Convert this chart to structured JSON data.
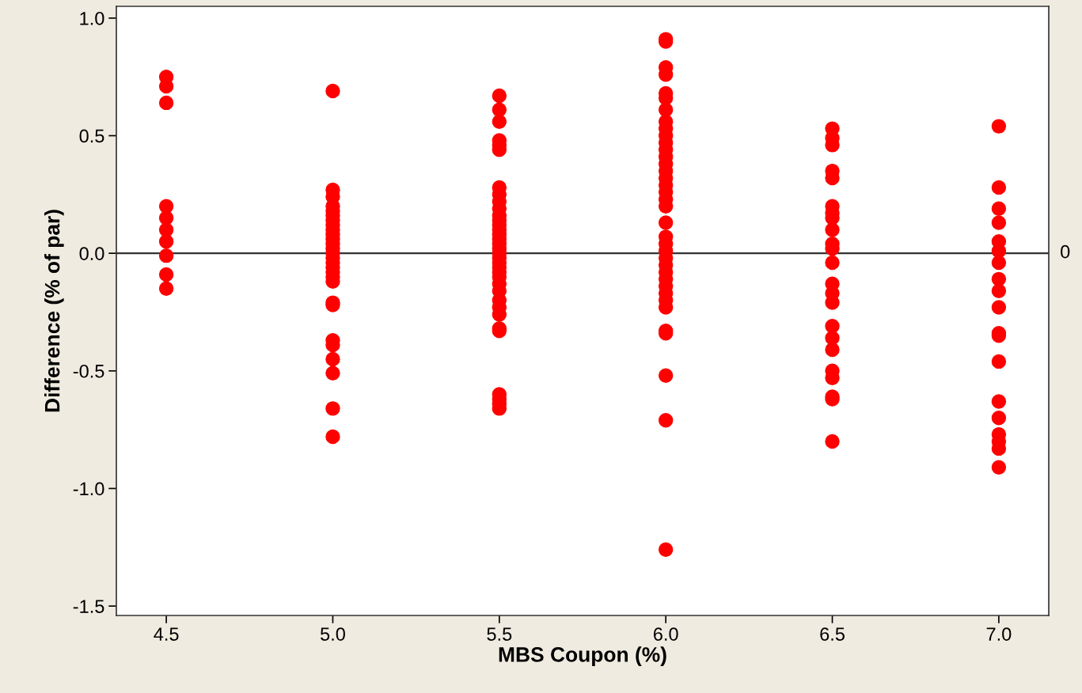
{
  "chart_data": {
    "type": "scatter",
    "xlabel": "MBS Coupon (%)",
    "ylabel": "Difference (% of par)",
    "xlim": [
      4.35,
      7.15
    ],
    "ylim": [
      -1.54,
      1.05
    ],
    "xticks": [
      {
        "value": 4.5,
        "label": "4.5"
      },
      {
        "value": 5.0,
        "label": "5.0"
      },
      {
        "value": 5.5,
        "label": "5.5"
      },
      {
        "value": 6.0,
        "label": "6.0"
      },
      {
        "value": 6.5,
        "label": "6.5"
      },
      {
        "value": 7.0,
        "label": "7.0"
      }
    ],
    "yticks": [
      {
        "value": -1.5,
        "label": "-1.5"
      },
      {
        "value": -1.0,
        "label": "-1.0"
      },
      {
        "value": -0.5,
        "label": "-0.5"
      },
      {
        "value": 0.0,
        "label": "0.0"
      },
      {
        "value": 0.5,
        "label": "0.5"
      },
      {
        "value": 1.0,
        "label": "1.0"
      }
    ],
    "grid": false,
    "marker": "circle",
    "ref_lines": [
      {
        "axis": "y",
        "value": 0,
        "label": "0",
        "color": "#333333"
      }
    ],
    "series": [
      {
        "color": "#ff0000",
        "x": [
          4.5,
          4.5,
          4.5,
          4.5,
          4.5,
          4.5,
          4.5,
          4.5,
          4.5,
          4.5,
          5.0,
          5.0,
          5.0,
          5.0,
          5.0,
          5.0,
          5.0,
          5.0,
          5.0,
          5.0,
          5.0,
          5.0,
          5.0,
          5.0,
          5.0,
          5.0,
          5.0,
          5.0,
          5.0,
          5.0,
          5.0,
          5.0,
          5.0,
          5.0,
          5.0,
          5.0,
          5.0,
          5.0,
          5.5,
          5.5,
          5.5,
          5.5,
          5.5,
          5.5,
          5.5,
          5.5,
          5.5,
          5.5,
          5.5,
          5.5,
          5.5,
          5.5,
          5.5,
          5.5,
          5.5,
          5.5,
          5.5,
          5.5,
          5.5,
          5.5,
          5.5,
          5.5,
          5.5,
          5.5,
          5.5,
          5.5,
          5.5,
          5.5,
          5.5,
          5.5,
          5.5,
          5.5,
          5.5,
          6.0,
          6.0,
          6.0,
          6.0,
          6.0,
          6.0,
          6.0,
          6.0,
          6.0,
          6.0,
          6.0,
          6.0,
          6.0,
          6.0,
          6.0,
          6.0,
          6.0,
          6.0,
          6.0,
          6.0,
          6.0,
          6.0,
          6.0,
          6.0,
          6.0,
          6.0,
          6.0,
          6.0,
          6.0,
          6.0,
          6.0,
          6.0,
          6.0,
          6.0,
          6.0,
          6.0,
          6.0,
          6.5,
          6.5,
          6.5,
          6.5,
          6.5,
          6.5,
          6.5,
          6.5,
          6.5,
          6.5,
          6.5,
          6.5,
          6.5,
          6.5,
          6.5,
          6.5,
          6.5,
          6.5,
          6.5,
          6.5,
          6.5,
          6.5,
          6.5,
          7.0,
          7.0,
          7.0,
          7.0,
          7.0,
          7.0,
          7.0,
          7.0,
          7.0,
          7.0,
          7.0,
          7.0,
          7.0,
          7.0,
          7.0,
          7.0,
          7.0,
          7.0,
          7.0
        ],
        "values": [
          0.75,
          0.71,
          0.64,
          0.2,
          0.15,
          0.1,
          0.05,
          -0.01,
          -0.09,
          -0.15,
          0.69,
          0.27,
          0.24,
          0.2,
          0.18,
          0.16,
          0.14,
          0.12,
          0.1,
          0.08,
          0.06,
          0.04,
          0.02,
          0.0,
          -0.02,
          -0.04,
          -0.06,
          -0.08,
          -0.1,
          -0.12,
          -0.21,
          -0.22,
          -0.37,
          -0.39,
          -0.45,
          -0.51,
          -0.66,
          -0.78,
          0.67,
          0.61,
          0.56,
          0.48,
          0.46,
          0.44,
          0.28,
          0.25,
          0.22,
          0.19,
          0.16,
          0.14,
          0.12,
          0.1,
          0.08,
          0.06,
          0.04,
          0.02,
          0.0,
          -0.02,
          -0.04,
          -0.06,
          -0.08,
          -0.1,
          -0.13,
          -0.16,
          -0.2,
          -0.23,
          -0.26,
          -0.32,
          -0.33,
          -0.6,
          -0.62,
          -0.64,
          -0.66,
          0.91,
          0.9,
          0.79,
          0.76,
          0.68,
          0.66,
          0.61,
          0.56,
          0.53,
          0.5,
          0.47,
          0.44,
          0.41,
          0.38,
          0.35,
          0.32,
          0.29,
          0.26,
          0.23,
          0.2,
          0.13,
          0.07,
          0.04,
          0.01,
          -0.02,
          -0.05,
          -0.08,
          -0.11,
          -0.14,
          -0.17,
          -0.2,
          -0.23,
          -0.33,
          -0.34,
          -0.52,
          -0.71,
          -1.26,
          0.53,
          0.49,
          0.46,
          0.35,
          0.32,
          0.2,
          0.17,
          0.15,
          0.1,
          0.04,
          0.02,
          -0.04,
          -0.13,
          -0.17,
          -0.21,
          -0.31,
          -0.36,
          -0.41,
          -0.5,
          -0.53,
          -0.61,
          -0.62,
          -0.8,
          0.54,
          0.28,
          0.19,
          0.13,
          0.05,
          0.01,
          -0.04,
          -0.11,
          -0.16,
          -0.23,
          -0.34,
          -0.35,
          -0.46,
          -0.63,
          -0.7,
          -0.77,
          -0.8,
          -0.83,
          -0.91
        ]
      }
    ]
  }
}
